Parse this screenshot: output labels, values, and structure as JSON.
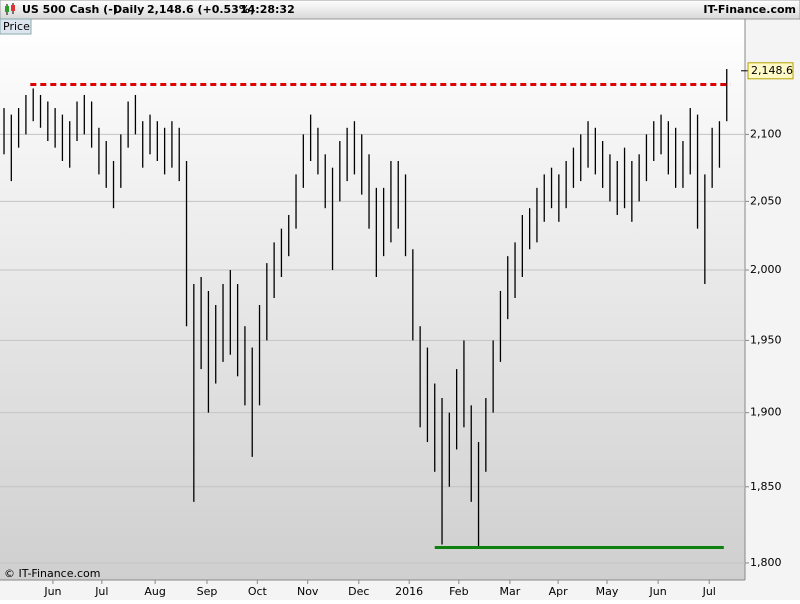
{
  "header": {
    "instrument": "US 500 Cash (-)",
    "period": "Daily",
    "quote": "2,148.6 (+0.53%)",
    "time": "14:28:32",
    "brand": "IT-Finance.com"
  },
  "chart_data": {
    "type": "ohlc",
    "panel": "Price",
    "copyright": "© IT-Finance.com",
    "color": "#000000",
    "ylog": true,
    "grid": true,
    "ylim": [
      1789,
      2189
    ],
    "xlim": [
      -0.55,
      101.5
    ],
    "yticks": [
      {
        "value": 1800,
        "label": "1,800"
      },
      {
        "value": 1850,
        "label": "1,850"
      },
      {
        "value": 1900,
        "label": "1,900"
      },
      {
        "value": 1950,
        "label": "1,950"
      },
      {
        "value": 2000,
        "label": "2,000"
      },
      {
        "value": 2050,
        "label": "2,050"
      },
      {
        "value": 2100,
        "label": "2,100"
      }
    ],
    "xticks": [
      {
        "value": 6.7,
        "label": "Jun"
      },
      {
        "value": 13.4,
        "label": "Jul"
      },
      {
        "value": 20.7,
        "label": "Aug"
      },
      {
        "value": 27.8,
        "label": "Sep"
      },
      {
        "value": 34.7,
        "label": "Oct"
      },
      {
        "value": 41.6,
        "label": "Nov"
      },
      {
        "value": 48.6,
        "label": "Dec"
      },
      {
        "value": 55.5,
        "label": "2016"
      },
      {
        "value": 62.3,
        "label": "Feb"
      },
      {
        "value": 69.3,
        "label": "Mar"
      },
      {
        "value": 75.9,
        "label": "Apr"
      },
      {
        "value": 82.6,
        "label": "May"
      },
      {
        "value": 89.6,
        "label": "Jun"
      },
      {
        "value": 96.6,
        "label": "Jul"
      }
    ],
    "high": [
      2120,
      2115,
      2120,
      2130,
      2135,
      2130,
      2125,
      2120,
      2115,
      2110,
      2125,
      2130,
      2125,
      2105,
      2095,
      2080,
      2100,
      2125,
      2130,
      2110,
      2115,
      2110,
      2105,
      2110,
      2105,
      2080,
      1990,
      1995,
      1985,
      1975,
      1990,
      2000,
      1990,
      1960,
      1945,
      1975,
      2005,
      2020,
      2030,
      2040,
      2070,
      2100,
      2115,
      2105,
      2085,
      2075,
      2095,
      2105,
      2110,
      2100,
      2085,
      2060,
      2060,
      2080,
      2080,
      2070,
      2015,
      1960,
      1945,
      1920,
      1910,
      1900,
      1930,
      1950,
      1905,
      1880,
      1910,
      1950,
      1985,
      2010,
      2020,
      2040,
      2045,
      2060,
      2070,
      2075,
      2070,
      2080,
      2090,
      2100,
      2110,
      2105,
      2095,
      2085,
      2080,
      2090,
      2080,
      2085,
      2100,
      2110,
      2115,
      2110,
      2105,
      2095,
      2120,
      2115,
      2070,
      2105,
      2110,
      2150
    ],
    "low": [
      2085,
      2065,
      2090,
      2100,
      2110,
      2105,
      2095,
      2090,
      2080,
      2075,
      2095,
      2100,
      2090,
      2070,
      2060,
      2045,
      2060,
      2090,
      2100,
      2075,
      2085,
      2080,
      2070,
      2075,
      2065,
      1960,
      1840,
      1930,
      1900,
      1920,
      1935,
      1940,
      1925,
      1905,
      1870,
      1905,
      1950,
      1980,
      1995,
      2010,
      2030,
      2060,
      2080,
      2070,
      2045,
      2000,
      2050,
      2065,
      2070,
      2055,
      2030,
      1995,
      2010,
      2020,
      2030,
      2010,
      1950,
      1890,
      1880,
      1860,
      1812,
      1850,
      1875,
      1890,
      1840,
      1810,
      1860,
      1900,
      1935,
      1965,
      1980,
      1995,
      2015,
      2020,
      2035,
      2045,
      2035,
      2045,
      2060,
      2065,
      2075,
      2070,
      2060,
      2050,
      2040,
      2045,
      2035,
      2050,
      2065,
      2080,
      2085,
      2070,
      2060,
      2060,
      2070,
      2030,
      1990,
      2060,
      2075,
      2110
    ],
    "last": {
      "value": 2148.6,
      "label": "2,148.6"
    },
    "levels": [
      {
        "value": 2138,
        "color": "#e00000",
        "dashed": true,
        "from": 3.6,
        "to": 99.5
      },
      {
        "value": 1810,
        "color": "#108010",
        "dashed": false,
        "from": 59,
        "to": 98.6
      }
    ]
  }
}
